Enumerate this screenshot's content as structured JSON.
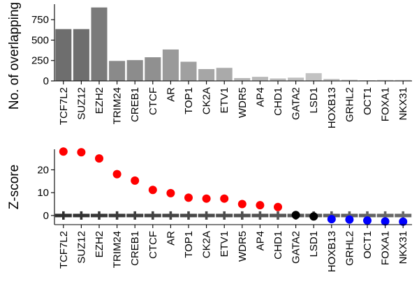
{
  "chart_data": [
    {
      "type": "bar",
      "ylabel": "No. of overlapping",
      "ylim": [
        0,
        940
      ],
      "yticks": [
        "0",
        "250",
        "500",
        "750"
      ],
      "categories": [
        "TCF7L2",
        "SUZ12",
        "EZH2",
        "TRIM24",
        "CREB1",
        "CTCF",
        "AR",
        "TOP1",
        "CK2A",
        "ETV1",
        "WDR5",
        "AP4",
        "CHD1",
        "GATA2",
        "LSD1",
        "HOXB13",
        "GRHL2",
        "OCT1",
        "FOXA1",
        "NKX31"
      ],
      "values": [
        635,
        635,
        900,
        245,
        255,
        290,
        385,
        235,
        145,
        160,
        35,
        50,
        30,
        40,
        95,
        25,
        15,
        8,
        12,
        12
      ],
      "bar_colors": [
        "#6e6e6e",
        "#6e6e6e",
        "#7a7a7a",
        "#8a8a8a",
        "#8c8c8c",
        "#909090",
        "#9a9a9a",
        "#a0a0a0",
        "#a6a6a6",
        "#aaaaaa",
        "#b6b6b6",
        "#b9b9b9",
        "#bcbcbc",
        "#bebebe",
        "#c2c2c2",
        "#c4c4c4",
        "#c8c8c8",
        "#cacaca",
        "#cccccc",
        "#cecece"
      ]
    },
    {
      "type": "scatter",
      "ylabel": "Z-score",
      "ylim": [
        -4,
        29
      ],
      "yticks": [
        "0",
        "10",
        "20"
      ],
      "categories": [
        "TCF7L2",
        "SUZ12",
        "EZH2",
        "TRIM24",
        "CREB1",
        "CTCF",
        "AR",
        "TOP1",
        "CK2A",
        "ETV1",
        "WDR5",
        "AP4",
        "CHD1",
        "GATA2",
        "LSD1",
        "HOXB13",
        "GRHL2",
        "OCT1",
        "FOXA1",
        "NKX31"
      ],
      "values": [
        28.0,
        27.7,
        25.0,
        18.1,
        15.3,
        11.2,
        9.8,
        7.8,
        7.4,
        7.4,
        5.0,
        4.5,
        3.7,
        0.2,
        -0.4,
        -1.6,
        -1.8,
        -2.2,
        -2.6,
        -2.7
      ],
      "point_colors": [
        "#ff0000",
        "#ff0000",
        "#ff0000",
        "#ff0000",
        "#ff0000",
        "#ff0000",
        "#ff0000",
        "#ff0000",
        "#ff0000",
        "#ff0000",
        "#ff0000",
        "#ff0000",
        "#ff0000",
        "#000000",
        "#000000",
        "#0000ff",
        "#0000ff",
        "#0000ff",
        "#0000ff",
        "#0000ff"
      ],
      "null_colors": [
        "#2e2e2e",
        "#323232",
        "#363636",
        "#3a3a3a",
        "#3e3e3e",
        "#424242",
        "#444444",
        "#474747",
        "#4a4a4a",
        "#4c4c4c",
        "#4f4f4f",
        "#525252",
        "#555555",
        "#585858",
        "#5b5b5b",
        "#5e5e5e",
        "#616161",
        "#646464",
        "#676767",
        "#6a6a6a"
      ]
    }
  ]
}
